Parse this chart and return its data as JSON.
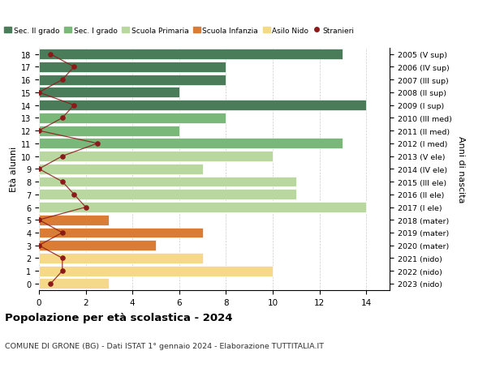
{
  "ages": [
    18,
    17,
    16,
    15,
    14,
    13,
    12,
    11,
    10,
    9,
    8,
    7,
    6,
    5,
    4,
    3,
    2,
    1,
    0
  ],
  "years": [
    "2005 (V sup)",
    "2006 (IV sup)",
    "2007 (III sup)",
    "2008 (II sup)",
    "2009 (I sup)",
    "2010 (III med)",
    "2011 (II med)",
    "2012 (I med)",
    "2013 (V ele)",
    "2014 (IV ele)",
    "2015 (III ele)",
    "2016 (II ele)",
    "2017 (I ele)",
    "2018 (mater)",
    "2019 (mater)",
    "2020 (mater)",
    "2021 (nido)",
    "2022 (nido)",
    "2023 (nido)"
  ],
  "bar_values": [
    13,
    8,
    8,
    6,
    14,
    8,
    6,
    13,
    10,
    7,
    11,
    11,
    14,
    3,
    7,
    5,
    7,
    10,
    3
  ],
  "bar_colors": [
    "#4a7c59",
    "#4a7c59",
    "#4a7c59",
    "#4a7c59",
    "#4a7c59",
    "#7ab87a",
    "#7ab87a",
    "#7ab87a",
    "#b8d8a0",
    "#b8d8a0",
    "#b8d8a0",
    "#b8d8a0",
    "#b8d8a0",
    "#d97c35",
    "#d97c35",
    "#d97c35",
    "#f5d98a",
    "#f5d98a",
    "#f5d98a"
  ],
  "stranieri_values": [
    0.5,
    1.5,
    1.0,
    0.0,
    1.5,
    1.0,
    0.0,
    2.5,
    1.0,
    0.0,
    1.0,
    1.5,
    2.0,
    0.0,
    1.0,
    0.0,
    1.0,
    1.0,
    0.5
  ],
  "legend_labels": [
    "Sec. II grado",
    "Sec. I grado",
    "Scuola Primaria",
    "Scuola Infanzia",
    "Asilo Nido",
    "Stranieri"
  ],
  "legend_colors": [
    "#4a7c59",
    "#7ab87a",
    "#b8d8a0",
    "#d97c35",
    "#f5d98a",
    "#8b1a1a"
  ],
  "title": "Popolazione per età scolastica - 2024",
  "subtitle": "COMUNE DI GRONE (BG) - Dati ISTAT 1° gennaio 2024 - Elaborazione TUTTITALIA.IT",
  "ylabel_left": "Età alunni",
  "ylabel_right": "Anni di nascita",
  "xlim": [
    0,
    15
  ],
  "xticks": [
    0,
    2,
    4,
    6,
    8,
    10,
    12,
    14
  ],
  "bg_color": "#ffffff",
  "bar_edge_color": "white",
  "grid_color": "#cccccc"
}
